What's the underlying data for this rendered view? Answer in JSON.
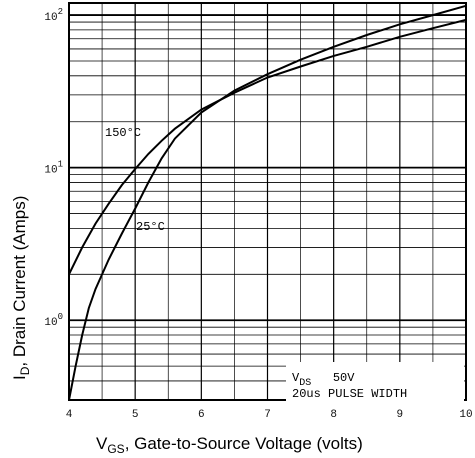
{
  "chart_data": {
    "type": "line",
    "title": "",
    "xlabel": {
      "main": "V",
      "sub": "GS",
      "rest": ", Gate-to-Source Voltage (volts)"
    },
    "ylabel": {
      "main": "I",
      "sub": "D",
      "rest": ", Drain Current (Amps)"
    },
    "xlim": [
      4,
      10
    ],
    "ylim": [
      0.3,
      120
    ],
    "yscale": "log",
    "grid": true,
    "x_ticks": [
      "4",
      "5",
      "6",
      "7",
      "8",
      "9",
      "10"
    ],
    "y_ticks": [
      {
        "base": "10",
        "exp": "0",
        "value": 1
      },
      {
        "base": "10",
        "exp": "1",
        "value": 10
      },
      {
        "base": "10",
        "exp": "2",
        "value": 100
      }
    ],
    "series": [
      {
        "name": "150°C",
        "x": [
          4.0,
          4.2,
          4.4,
          4.6,
          4.8,
          5.0,
          5.2,
          5.4,
          5.6,
          6.0,
          6.5,
          7.0,
          7.5,
          8.0,
          8.5,
          9.0,
          9.5,
          10.0
        ],
        "y": [
          2.0,
          3.0,
          4.3,
          5.8,
          7.7,
          9.8,
          12.3,
          15.0,
          18.0,
          24.0,
          31.0,
          39.0,
          46.0,
          54.0,
          62.0,
          72.0,
          82.0,
          93.0
        ]
      },
      {
        "name": "25°C",
        "x": [
          4.0,
          4.1,
          4.2,
          4.3,
          4.4,
          4.6,
          4.8,
          5.0,
          5.2,
          5.4,
          5.6,
          6.0,
          6.5,
          7.0,
          7.5,
          8.0,
          8.5,
          9.0,
          9.5,
          10.0
        ],
        "y": [
          0.3,
          0.5,
          0.8,
          1.2,
          1.6,
          2.5,
          3.7,
          5.4,
          8.0,
          11.5,
          15.5,
          23.0,
          32.0,
          41.0,
          51.0,
          62.0,
          74.0,
          87.0,
          100.0,
          115.0
        ]
      }
    ],
    "annotations": [
      {
        "id": "curve-150",
        "text": "150°C"
      },
      {
        "id": "curve-25",
        "text": "25°C"
      },
      {
        "id": "vds",
        "text_main": "V",
        "text_sub": "DS",
        "text_rest": "   50V"
      },
      {
        "id": "pulse",
        "text": "20us PULSE WIDTH"
      }
    ]
  }
}
